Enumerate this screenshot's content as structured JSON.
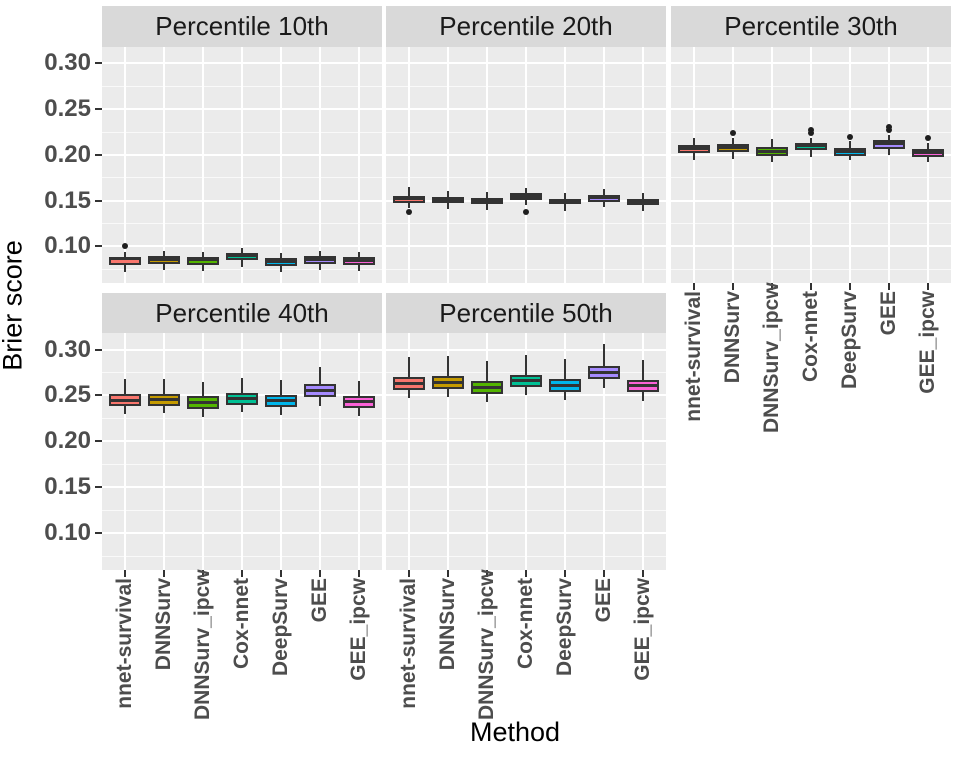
{
  "figure_title": "",
  "chart_data": {
    "type": "boxplot",
    "facet_variable": "Percentile",
    "xlabel": "Method",
    "ylabel": "Brier score",
    "y_ticks": [
      0.1,
      0.15,
      0.2,
      0.25,
      0.3
    ],
    "y_minor_ticks": [
      0.075,
      0.125,
      0.175,
      0.225,
      0.275
    ],
    "y_tick_format": "0.00",
    "ylim": [
      0.06,
      0.318
    ],
    "grid": true,
    "legend": "none",
    "panel_bg": "#EBEBEB",
    "strip_bg": "#D9D9D9",
    "methods": [
      "nnet-survival",
      "DNNSurv",
      "DNNSurv_ipcw",
      "Cox-nnet",
      "DeepSurv",
      "GEE",
      "GEE_ipcw"
    ],
    "colors": [
      "#F8766D",
      "#C49A00",
      "#53B400",
      "#00C094",
      "#00B6EB",
      "#A58AFF",
      "#FB61D7"
    ],
    "facets": [
      {
        "label": "Percentile 10th",
        "series": [
          {
            "method": "nnet-survival",
            "min": 0.072,
            "q1": 0.08,
            "median": 0.0865,
            "q3": 0.0885,
            "max": 0.094,
            "outliers": [
              0.1
            ]
          },
          {
            "method": "DNNSurv",
            "min": 0.074,
            "q1": 0.081,
            "median": 0.086,
            "q3": 0.089,
            "max": 0.095,
            "outliers": []
          },
          {
            "method": "DNNSurv_ipcw",
            "min": 0.073,
            "q1": 0.08,
            "median": 0.0855,
            "q3": 0.0885,
            "max": 0.094,
            "outliers": []
          },
          {
            "method": "Cox-nnet",
            "min": 0.078,
            "q1": 0.0855,
            "median": 0.09,
            "q3": 0.0925,
            "max": 0.098,
            "outliers": []
          },
          {
            "method": "DeepSurv",
            "min": 0.072,
            "q1": 0.079,
            "median": 0.084,
            "q3": 0.087,
            "max": 0.093,
            "outliers": []
          },
          {
            "method": "GEE",
            "min": 0.074,
            "q1": 0.081,
            "median": 0.086,
            "q3": 0.089,
            "max": 0.095,
            "outliers": []
          },
          {
            "method": "GEE_ipcw",
            "min": 0.073,
            "q1": 0.08,
            "median": 0.085,
            "q3": 0.088,
            "max": 0.094,
            "outliers": []
          }
        ]
      },
      {
        "label": "Percentile 20th",
        "series": [
          {
            "method": "nnet-survival",
            "min": 0.142,
            "q1": 0.147,
            "median": 0.152,
            "q3": 0.1555,
            "max": 0.165,
            "outliers": [
              0.1375
            ]
          },
          {
            "method": "DNNSurv",
            "min": 0.141,
            "q1": 0.147,
            "median": 0.151,
            "q3": 0.1545,
            "max": 0.161,
            "outliers": []
          },
          {
            "method": "DNNSurv_ipcw",
            "min": 0.14,
            "q1": 0.146,
            "median": 0.15,
            "q3": 0.153,
            "max": 0.159,
            "outliers": []
          },
          {
            "method": "Cox-nnet",
            "min": 0.145,
            "q1": 0.151,
            "median": 0.155,
            "q3": 0.158,
            "max": 0.164,
            "outliers": [
              0.138
            ]
          },
          {
            "method": "DeepSurv",
            "min": 0.139,
            "q1": 0.146,
            "median": 0.149,
            "q3": 0.152,
            "max": 0.158,
            "outliers": []
          },
          {
            "method": "GEE",
            "min": 0.143,
            "q1": 0.149,
            "median": 0.153,
            "q3": 0.156,
            "max": 0.163,
            "outliers": []
          },
          {
            "method": "GEE_ipcw",
            "min": 0.139,
            "q1": 0.145,
            "median": 0.149,
            "q3": 0.152,
            "max": 0.158,
            "outliers": []
          }
        ]
      },
      {
        "label": "Percentile 30th",
        "series": [
          {
            "method": "nnet-survival",
            "min": 0.195,
            "q1": 0.202,
            "median": 0.207,
            "q3": 0.211,
            "max": 0.218,
            "outliers": []
          },
          {
            "method": "DNNSurv",
            "min": 0.196,
            "q1": 0.203,
            "median": 0.208,
            "q3": 0.212,
            "max": 0.218,
            "outliers": [
              0.224
            ]
          },
          {
            "method": "DNNSurv_ipcw",
            "min": 0.192,
            "q1": 0.199,
            "median": 0.204,
            "q3": 0.209,
            "max": 0.217,
            "outliers": []
          },
          {
            "method": "Cox-nnet",
            "min": 0.198,
            "q1": 0.205,
            "median": 0.21,
            "q3": 0.213,
            "max": 0.219,
            "outliers": [
              0.224,
              0.227
            ]
          },
          {
            "method": "DeepSurv",
            "min": 0.194,
            "q1": 0.199,
            "median": 0.204,
            "q3": 0.208,
            "max": 0.215,
            "outliers": [
              0.22
            ]
          },
          {
            "method": "GEE",
            "min": 0.2,
            "q1": 0.207,
            "median": 0.212,
            "q3": 0.216,
            "max": 0.222,
            "outliers": [
              0.227,
              0.23
            ]
          },
          {
            "method": "GEE_ipcw",
            "min": 0.192,
            "q1": 0.198,
            "median": 0.203,
            "q3": 0.207,
            "max": 0.213,
            "outliers": [
              0.218
            ]
          }
        ]
      },
      {
        "label": "Percentile 40th",
        "series": [
          {
            "method": "nnet-survival",
            "min": 0.23,
            "q1": 0.238,
            "median": 0.245,
            "q3": 0.252,
            "max": 0.268,
            "outliers": []
          },
          {
            "method": "DNNSurv",
            "min": 0.231,
            "q1": 0.239,
            "median": 0.246,
            "q3": 0.252,
            "max": 0.268,
            "outliers": []
          },
          {
            "method": "DNNSurv_ipcw",
            "min": 0.227,
            "q1": 0.235,
            "median": 0.242,
            "q3": 0.249,
            "max": 0.265,
            "outliers": []
          },
          {
            "method": "Cox-nnet",
            "min": 0.232,
            "q1": 0.24,
            "median": 0.247,
            "q3": 0.253,
            "max": 0.269,
            "outliers": []
          },
          {
            "method": "DeepSurv",
            "min": 0.229,
            "q1": 0.237,
            "median": 0.244,
            "q3": 0.25,
            "max": 0.267,
            "outliers": []
          },
          {
            "method": "GEE",
            "min": 0.238,
            "q1": 0.248,
            "median": 0.255,
            "q3": 0.262,
            "max": 0.281,
            "outliers": []
          },
          {
            "method": "GEE_ipcw",
            "min": 0.228,
            "q1": 0.236,
            "median": 0.243,
            "q3": 0.249,
            "max": 0.266,
            "outliers": []
          }
        ]
      },
      {
        "label": "Percentile 50th",
        "series": [
          {
            "method": "nnet-survival",
            "min": 0.247,
            "q1": 0.256,
            "median": 0.263,
            "q3": 0.27,
            "max": 0.292,
            "outliers": []
          },
          {
            "method": "DNNSurv",
            "min": 0.248,
            "q1": 0.257,
            "median": 0.264,
            "q3": 0.271,
            "max": 0.293,
            "outliers": []
          },
          {
            "method": "DNNSurv_ipcw",
            "min": 0.243,
            "q1": 0.252,
            "median": 0.259,
            "q3": 0.266,
            "max": 0.288,
            "outliers": []
          },
          {
            "method": "Cox-nnet",
            "min": 0.25,
            "q1": 0.259,
            "median": 0.266,
            "q3": 0.272,
            "max": 0.294,
            "outliers": []
          },
          {
            "method": "DeepSurv",
            "min": 0.245,
            "q1": 0.254,
            "median": 0.261,
            "q3": 0.268,
            "max": 0.29,
            "outliers": []
          },
          {
            "method": "GEE",
            "min": 0.258,
            "q1": 0.268,
            "median": 0.275,
            "q3": 0.282,
            "max": 0.306,
            "outliers": []
          },
          {
            "method": "GEE_ipcw",
            "min": 0.244,
            "q1": 0.254,
            "median": 0.261,
            "q3": 0.267,
            "max": 0.289,
            "outliers": []
          }
        ]
      }
    ]
  }
}
